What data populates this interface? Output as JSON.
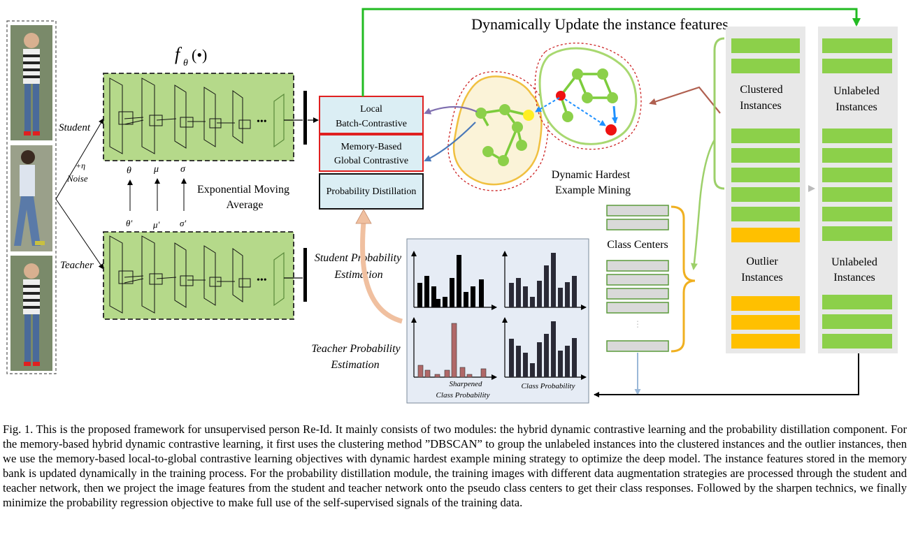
{
  "diagram": {
    "title_top": "Dynamically Update the instance features",
    "network_function": "f",
    "network_function_sub": "θ",
    "network_function_arg": "(•)",
    "labels": {
      "student": "Student",
      "teacher": "Teacher",
      "noise_line1": "+η",
      "noise_line2": "Noise",
      "ema_line1": "Exponential Moving",
      "ema_line2": "Average",
      "param_theta": "θ",
      "param_mu": "μ",
      "param_sigma": "σ",
      "param_theta_prime": "θ'",
      "param_mu_prime": "μ'",
      "param_sigma_prime": "σ'",
      "dots": "•••",
      "local_batch_line1": "Local",
      "local_batch_line2": "Batch-Contrastive",
      "memory_global_line1": "Memory-Based",
      "memory_global_line2": "Global Contrastive",
      "probability_distillation": "Probability Distillation",
      "hardest_line1": "Dynamic Hardest",
      "hardest_line2": "Example Mining",
      "student_prob_line1": "Student Probability",
      "student_prob_line2": "Estimation",
      "teacher_prob_line1": "Teacher Probability",
      "teacher_prob_line2": "Estimation",
      "sharpened_line1": "Sharpened",
      "sharpened_line2": "Class Probability",
      "class_probability": "Class Probability",
      "class_centers": "Class Centers",
      "clustered_line1": "Clustered",
      "clustered_line2": "Instances",
      "unlabeled_line1": "Unlabeled",
      "unlabeled_line2": "Instances",
      "outlier_line1": "Outlier",
      "outlier_line2": "Instances",
      "unlabeled2_line1": "Unlabeled",
      "unlabeled2_line2": "Instances"
    },
    "colors": {
      "network_fill": "#b5d98a",
      "feature_green": "#8cd04a",
      "feature_orange": "#ffc000",
      "center_gray": "#d9d9d9",
      "loss_box_fill": "#dbeef4",
      "loss_border_red": "#e02020",
      "arrow_green": "#22bb22",
      "cluster_red": "#cc2222",
      "cluster_yellow": "#f0c040",
      "hard_blue": "#1e90ff"
    }
  },
  "caption": "Fig. 1.  This is the proposed framework for unsupervised person Re-Id. It mainly consists of two modules: the hybrid dynamic contrastive learning and the probability distillation component. For the memory-based hybrid dynamic contrastive learning, it first uses the clustering method ”DBSCAN” to group the unlabeled instances into the clustered instances and the outlier instances, then we use the memory-based local-to-global contrastive learning objectives with dynamic hardest example mining strategy to optimize the deep model. The instance features stored in the memory bank is updated dynamically in the training process. For the probability distillation module, the training images with different data augmentation strategies are processed through the student and teacher network, then we project the image features from the student and teacher network onto the pseudo class centers to get their class responses. Followed by the sharpen technics, we finally minimize the probability regression objective to make full use of the self-supervised signals of the training data."
}
